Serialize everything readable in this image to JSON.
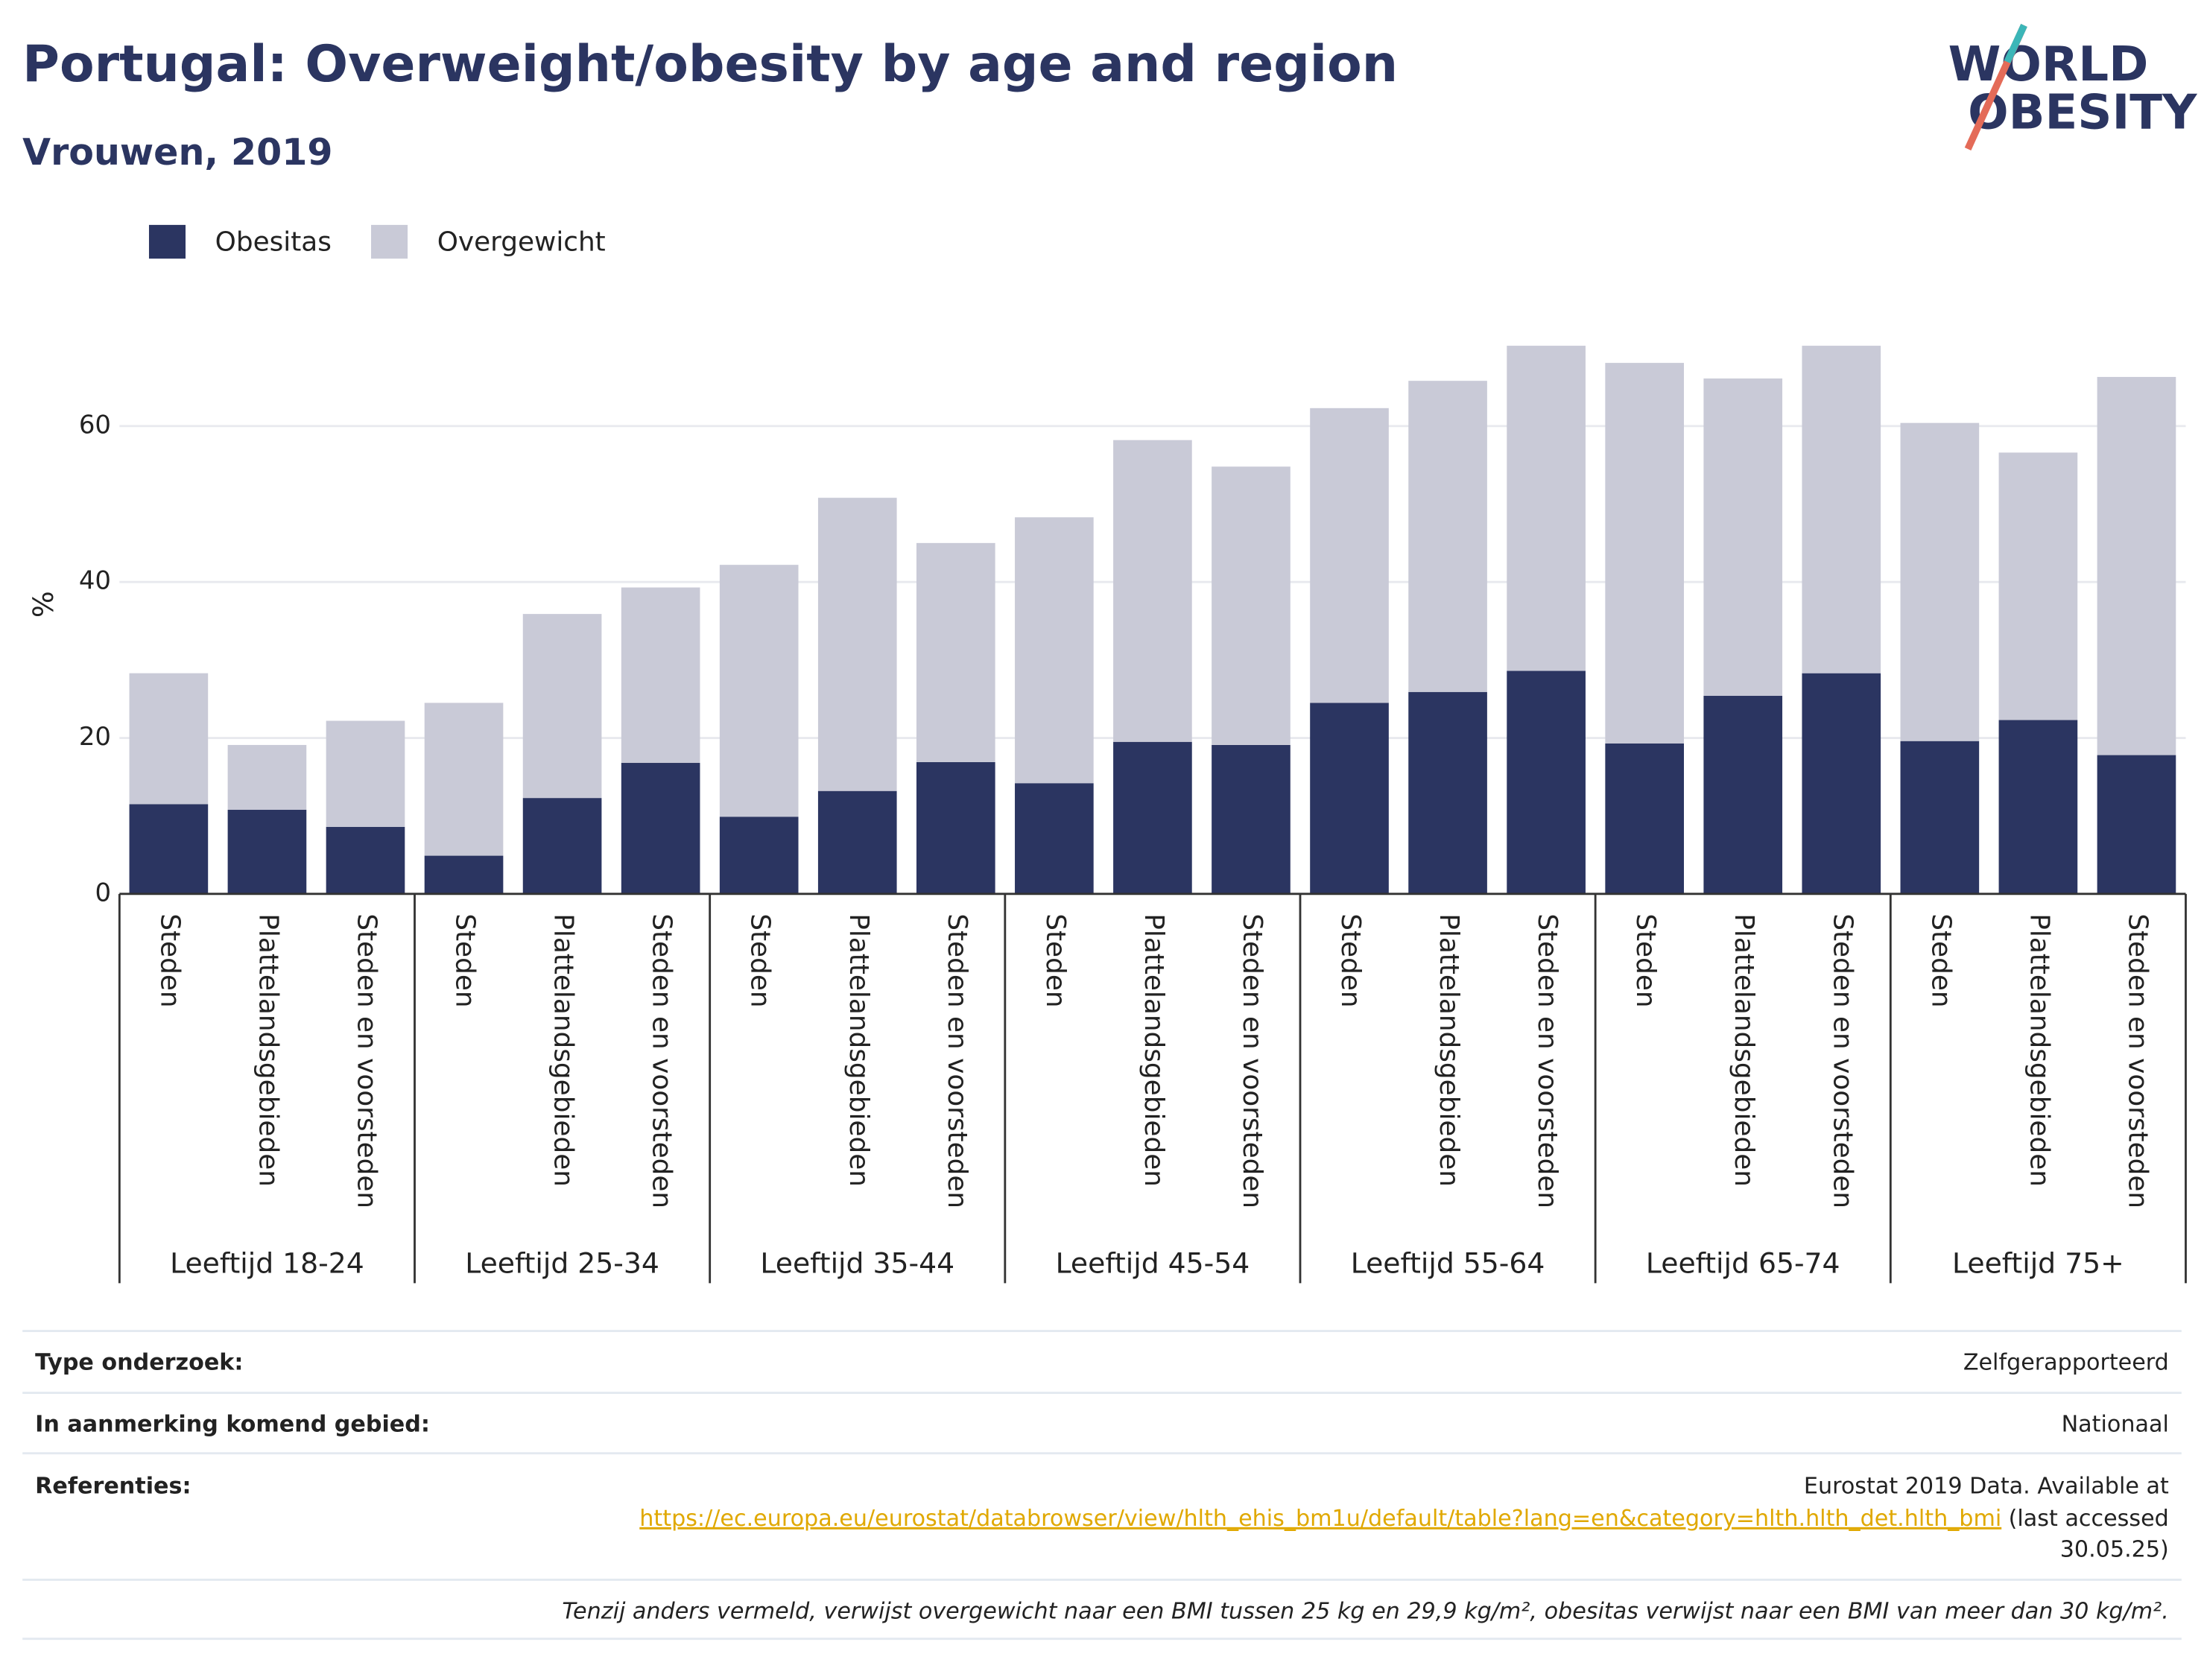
{
  "chart_data": {
    "type": "stacked_bar",
    "title": "Portugal: Overweight/obesity by age and region",
    "subtitle": "Vrouwen, 2019",
    "y_label": "%",
    "groups": [
      "Leeftijd 18-24",
      "Leeftijd 25-34",
      "Leeftijd 35-44",
      "Leeftijd 45-54",
      "Leeftijd 55-64",
      "Leeftijd 65-74",
      "Leeftijd 75+"
    ],
    "categories": [
      "Steden",
      "Plattelandsgebieden",
      "Steden en voorsteden",
      "Steden",
      "Plattelandsgebieden",
      "Steden en voorsteden",
      "Steden",
      "Plattelandsgebieden",
      "Steden en voorsteden",
      "Steden",
      "Plattelandsgebieden",
      "Steden en voorsteden",
      "Steden",
      "Plattelandsgebieden",
      "Steden en voorsteden",
      "Steden",
      "Plattelandsgebieden",
      "Steden en voorsteden",
      "Steden",
      "Plattelandsgebieden",
      "Steden en voorsteden"
    ],
    "series": [
      {
        "name": "Obesitas",
        "color": "#2b3561",
        "values": [
          11.5,
          10.8,
          8.6,
          4.9,
          12.3,
          16.8,
          9.9,
          13.2,
          16.9,
          14.2,
          19.5,
          19.1,
          24.5,
          25.9,
          28.6,
          19.3,
          25.4,
          28.3,
          19.6,
          22.3,
          17.8
        ]
      },
      {
        "name": "Overgewicht",
        "color": "#c9cad7",
        "values": [
          16.8,
          8.3,
          13.6,
          19.6,
          23.6,
          22.5,
          32.3,
          37.6,
          28.1,
          34.1,
          38.7,
          35.7,
          37.8,
          39.9,
          41.7,
          48.8,
          40.7,
          42.0,
          40.8,
          34.3,
          48.5
        ]
      }
    ],
    "ylim": [
      0,
      73
    ],
    "yticks": [
      0,
      20,
      40,
      60
    ],
    "grid": true,
    "legend": "top-left"
  },
  "logo": [
    "WORLD",
    "OBESITY"
  ],
  "footer": {
    "rows": [
      {
        "label": "Type onderzoek:",
        "value": "Zelfgerapporteerd"
      },
      {
        "label": "In aanmerking komend gebied:",
        "value": "Nationaal"
      }
    ],
    "reference": {
      "label": "Referenties:",
      "text": "Eurostat 2019 Data. Available at",
      "url": "https://ec.europa.eu/eurostat/databrowser/view/hlth_ehis_bm1u/default/table?lang=en&category=hlth.hlth_det.hlth_bmi",
      "accessed": [
        "(last accessed",
        "30.05.25)"
      ]
    },
    "note": "Tenzij anders vermeld, verwijst overgewicht naar een BMI tussen 25 kg en 29,9 kg/m², obesitas verwijst naar een BMI van meer dan 30 kg/m²."
  }
}
